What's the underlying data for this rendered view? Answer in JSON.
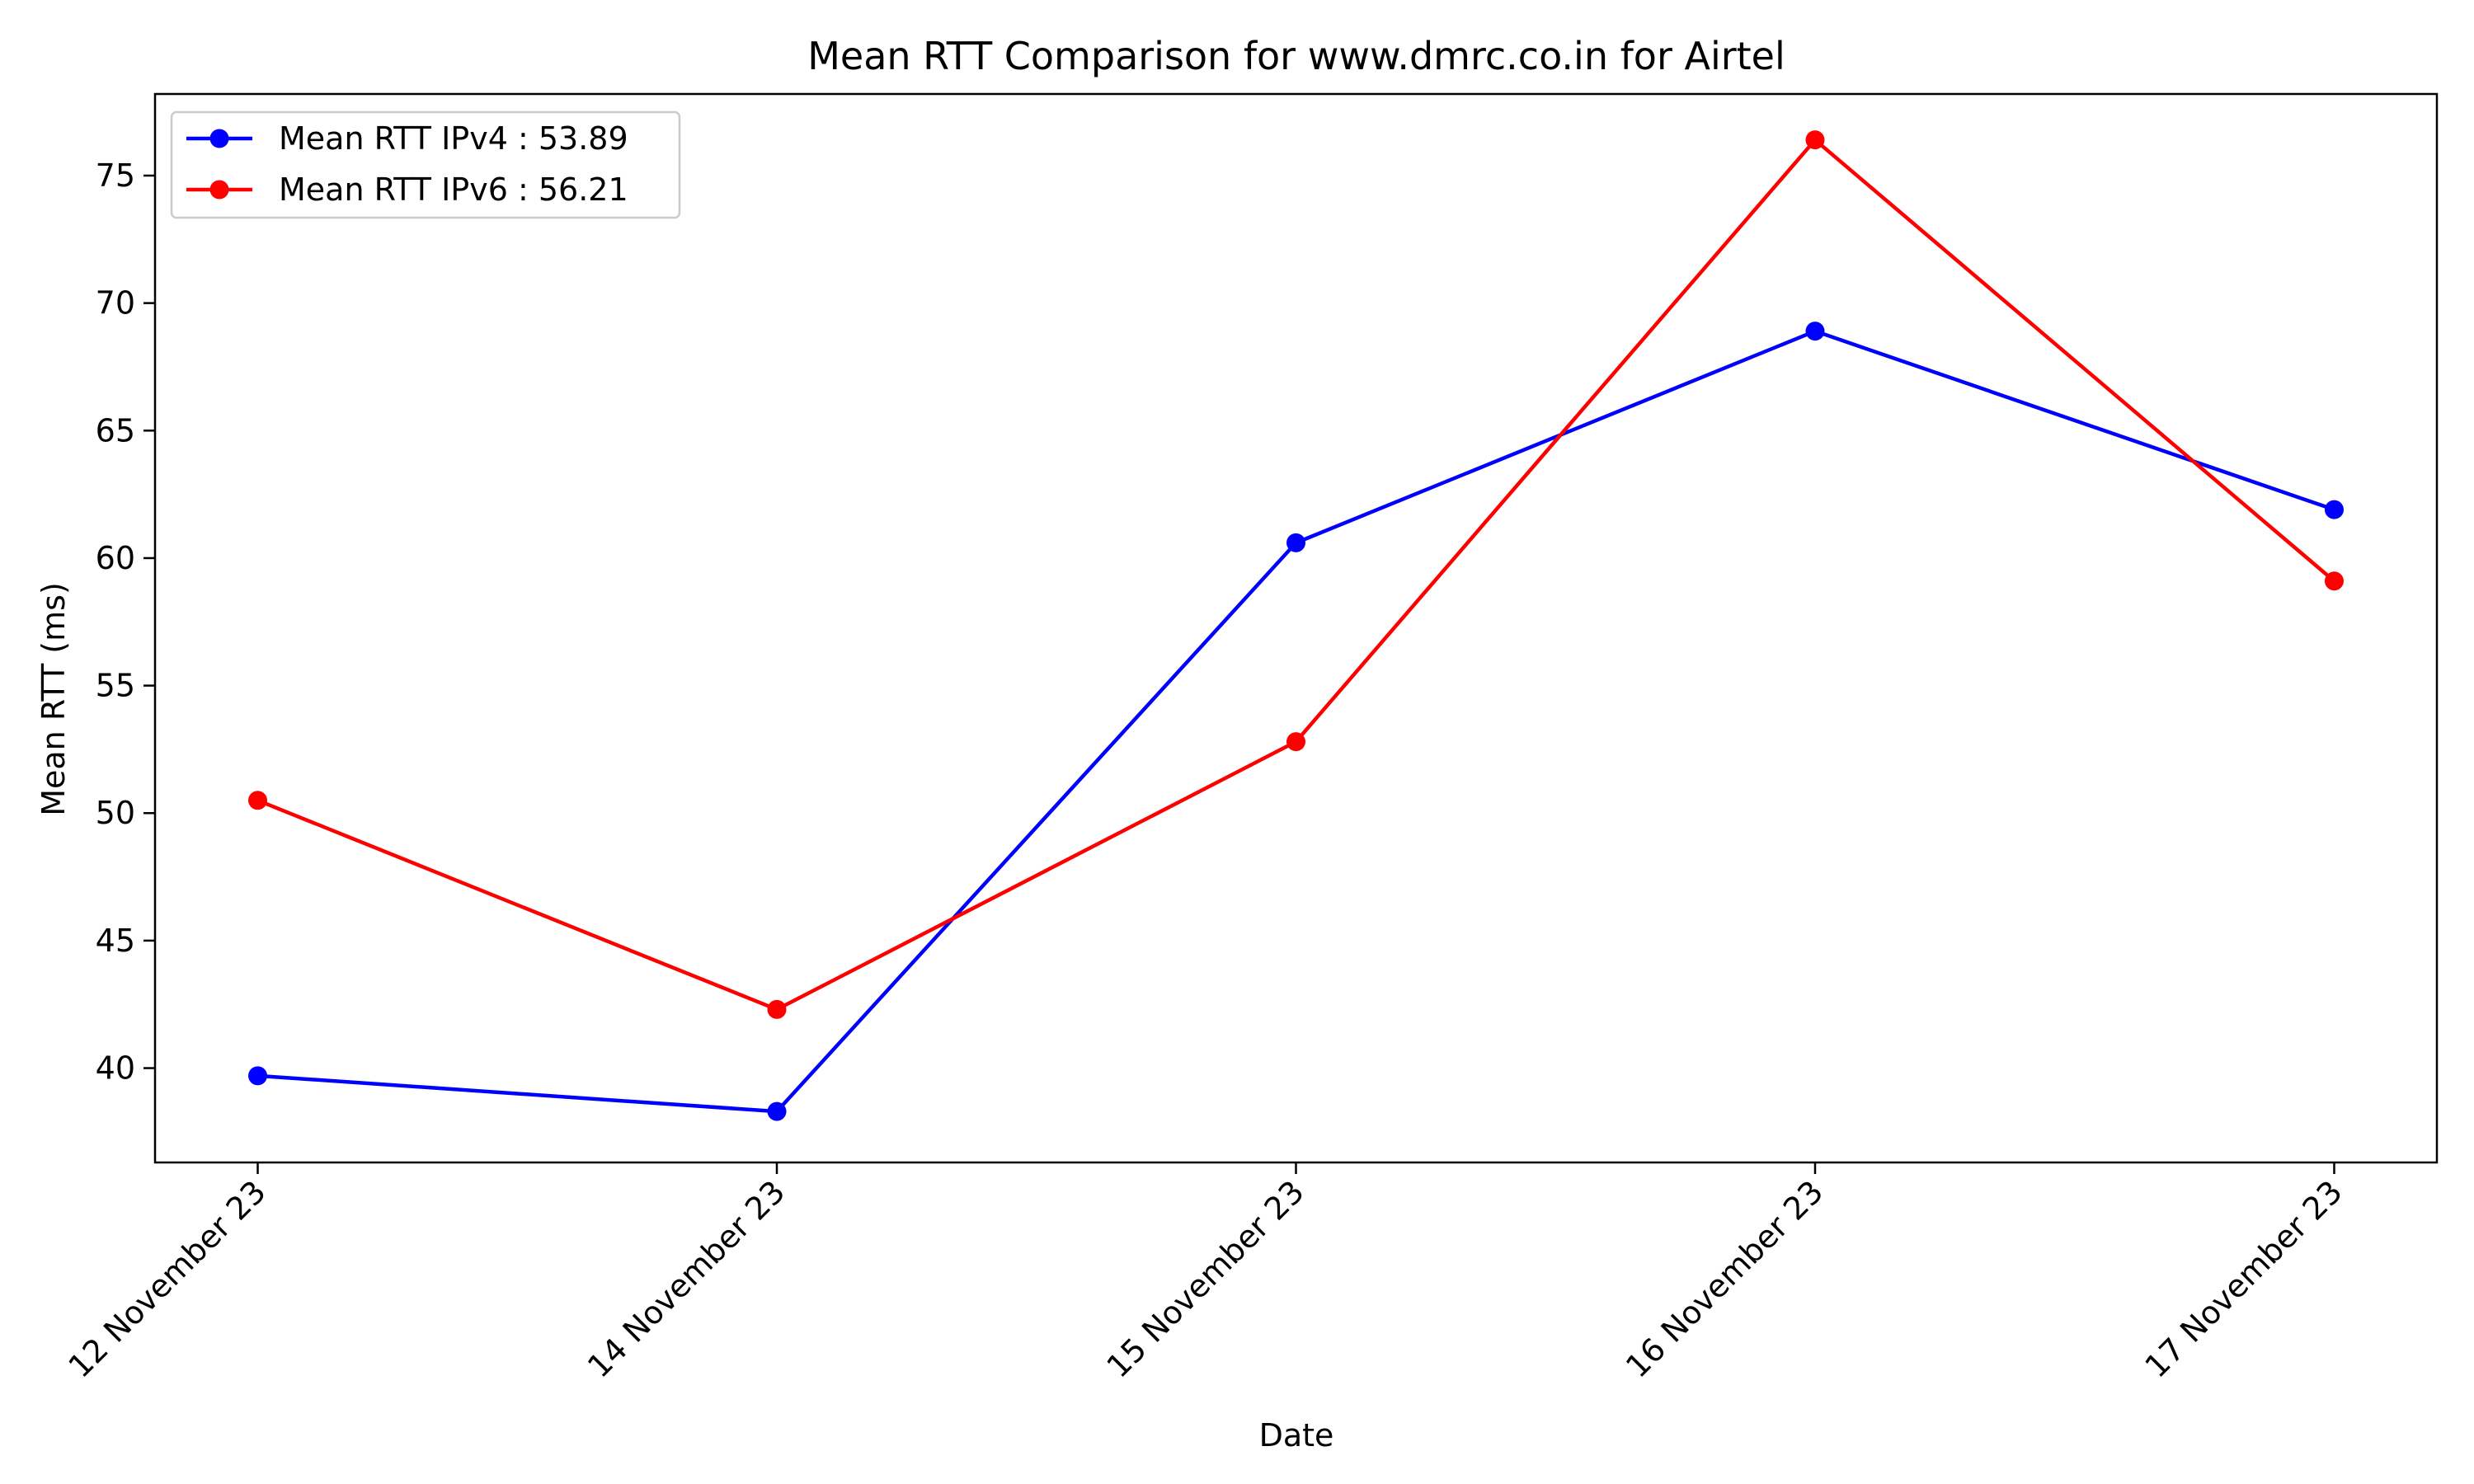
{
  "chart_data": {
    "type": "line",
    "title": "Mean RTT Comparison for www.dmrc.co.in for Airtel",
    "xlabel": "Date",
    "ylabel": "Mean RTT (ms)",
    "x": [
      "12 November 23",
      "14 November 23",
      "15 November 23",
      "16 November 23",
      "17 November 23"
    ],
    "ylim": [
      36.3,
      78.2
    ],
    "yticks": [
      40,
      45,
      50,
      55,
      60,
      65,
      70,
      75
    ],
    "grid": false,
    "legend_position": "top-left",
    "series": [
      {
        "name": "Mean RTT IPv4 : 53.89",
        "color": "#0000ff",
        "marker": "circle",
        "values": [
          39.7,
          38.3,
          60.6,
          68.9,
          61.9
        ]
      },
      {
        "name": "Mean RTT IPv6 : 56.21",
        "color": "#ff0000",
        "marker": "circle",
        "values": [
          50.5,
          42.3,
          52.8,
          76.4,
          59.1
        ]
      }
    ]
  }
}
